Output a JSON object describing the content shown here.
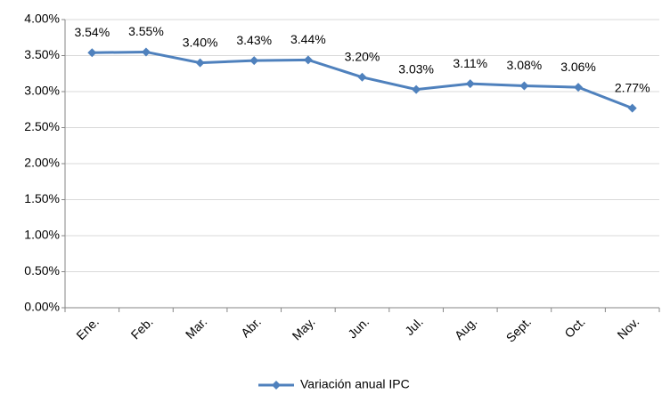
{
  "chart_data": {
    "type": "line",
    "categories": [
      "Ene.",
      "Feb.",
      "Mar.",
      "Abr.",
      "May.",
      "Jun.",
      "Jul.",
      "Aug.",
      "Sept.",
      "Oct.",
      "Nov."
    ],
    "series": [
      {
        "name": "Variación anual IPC",
        "color": "#4f81bd",
        "values": [
          3.54,
          3.55,
          3.4,
          3.43,
          3.44,
          3.2,
          3.03,
          3.11,
          3.08,
          3.06,
          2.77
        ],
        "value_labels": [
          "3.54%",
          "3.55%",
          "3.40%",
          "3.43%",
          "3.44%",
          "3.20%",
          "3.03%",
          "3.11%",
          "3.08%",
          "3.06%",
          "2.77%"
        ]
      }
    ],
    "ylim": [
      0,
      4
    ],
    "yticks": [
      {
        "value": 0,
        "label": "0.00%"
      },
      {
        "value": 0.5,
        "label": "0.50%"
      },
      {
        "value": 1,
        "label": "1.00%"
      },
      {
        "value": 1.5,
        "label": "1.50%"
      },
      {
        "value": 2,
        "label": "2.00%"
      },
      {
        "value": 2.5,
        "label": "2.50%"
      },
      {
        "value": 3,
        "label": "3.00%"
      },
      {
        "value": 3.5,
        "label": "3.50%"
      },
      {
        "value": 4,
        "label": "4.00%"
      }
    ],
    "grid": true,
    "legend": "bottom"
  }
}
